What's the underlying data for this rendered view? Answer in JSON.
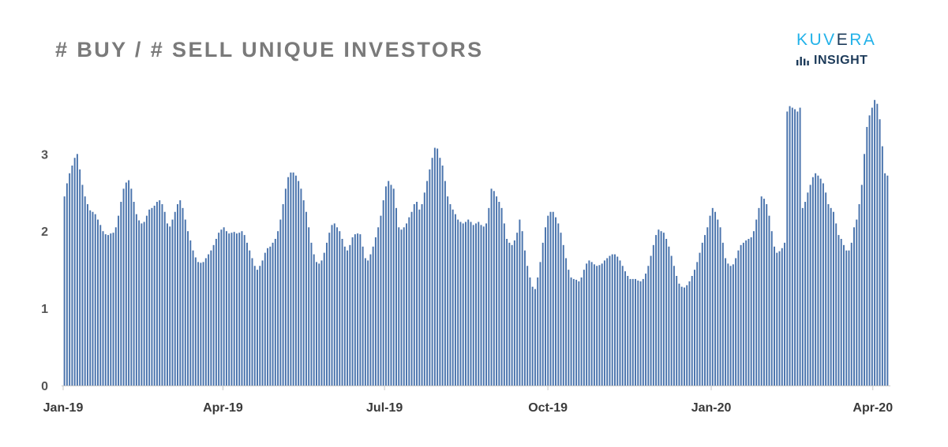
{
  "title": "# BUY / # SELL UNIQUE INVESTORS",
  "logo": {
    "top_a": "KUV",
    "top_e": "E",
    "top_b": "RA",
    "bottom": "INSIGHT",
    "accent": "#23b2e9",
    "dark": "#1d3b5a",
    "icon": "bar-chart-icon"
  },
  "chart_data": {
    "type": "bar",
    "x_start": "2019-01-01",
    "x_end": "2020-04-10",
    "ylim": [
      0,
      3.8
    ],
    "yticks": [
      0,
      1,
      2,
      3
    ],
    "xticks": [
      "Jan-19",
      "Apr-19",
      "Jul-19",
      "Oct-19",
      "Jan-20",
      "Apr-20"
    ],
    "xtick_dates": [
      "2019-01-01",
      "2019-04-01",
      "2019-07-01",
      "2019-10-01",
      "2020-01-01",
      "2020-04-01"
    ],
    "bar_color": "#4a74ad",
    "values": [
      2.45,
      2.62,
      2.75,
      2.85,
      2.95,
      3.0,
      2.8,
      2.6,
      2.45,
      2.35,
      2.27,
      2.25,
      2.22,
      2.15,
      2.08,
      2.0,
      1.96,
      1.95,
      1.97,
      1.98,
      2.05,
      2.2,
      2.38,
      2.55,
      2.63,
      2.66,
      2.55,
      2.38,
      2.22,
      2.14,
      2.1,
      2.12,
      2.2,
      2.28,
      2.3,
      2.33,
      2.38,
      2.4,
      2.35,
      2.25,
      2.1,
      2.06,
      2.15,
      2.25,
      2.35,
      2.4,
      2.3,
      2.15,
      2.0,
      1.88,
      1.75,
      1.66,
      1.6,
      1.59,
      1.6,
      1.65,
      1.7,
      1.75,
      1.82,
      1.9,
      1.98,
      2.02,
      2.05,
      2.0,
      1.97,
      1.98,
      1.99,
      1.97,
      1.98,
      2.0,
      1.95,
      1.85,
      1.75,
      1.65,
      1.55,
      1.5,
      1.55,
      1.62,
      1.72,
      1.78,
      1.8,
      1.85,
      1.9,
      2.0,
      2.15,
      2.35,
      2.55,
      2.7,
      2.76,
      2.76,
      2.72,
      2.65,
      2.55,
      2.4,
      2.25,
      2.05,
      1.85,
      1.7,
      1.6,
      1.58,
      1.62,
      1.72,
      1.85,
      1.98,
      2.08,
      2.1,
      2.05,
      2.0,
      1.9,
      1.8,
      1.75,
      1.82,
      1.92,
      1.96,
      1.97,
      1.96,
      1.8,
      1.65,
      1.62,
      1.7,
      1.8,
      1.92,
      2.05,
      2.2,
      2.4,
      2.58,
      2.65,
      2.6,
      2.55,
      2.3,
      2.05,
      2.02,
      2.05,
      2.1,
      2.18,
      2.25,
      2.35,
      2.38,
      2.28,
      2.35,
      2.5,
      2.65,
      2.8,
      2.95,
      3.08,
      3.07,
      2.95,
      2.85,
      2.65,
      2.45,
      2.35,
      2.28,
      2.22,
      2.15,
      2.12,
      2.1,
      2.12,
      2.15,
      2.12,
      2.08,
      2.1,
      2.12,
      2.08,
      2.06,
      2.1,
      2.3,
      2.55,
      2.52,
      2.45,
      2.38,
      2.3,
      2.1,
      1.9,
      1.85,
      1.82,
      1.88,
      1.98,
      2.15,
      2.0,
      1.75,
      1.55,
      1.4,
      1.28,
      1.25,
      1.4,
      1.6,
      1.85,
      2.05,
      2.2,
      2.25,
      2.25,
      2.18,
      2.1,
      1.98,
      1.82,
      1.65,
      1.5,
      1.4,
      1.38,
      1.37,
      1.35,
      1.4,
      1.5,
      1.58,
      1.62,
      1.6,
      1.57,
      1.55,
      1.56,
      1.58,
      1.62,
      1.65,
      1.68,
      1.7,
      1.7,
      1.67,
      1.62,
      1.55,
      1.48,
      1.42,
      1.38,
      1.38,
      1.38,
      1.36,
      1.35,
      1.38,
      1.45,
      1.55,
      1.68,
      1.82,
      1.95,
      2.02,
      2.0,
      1.98,
      1.9,
      1.8,
      1.68,
      1.55,
      1.42,
      1.32,
      1.28,
      1.27,
      1.3,
      1.35,
      1.42,
      1.5,
      1.6,
      1.72,
      1.85,
      1.95,
      2.05,
      2.2,
      2.3,
      2.25,
      2.15,
      2.05,
      1.85,
      1.65,
      1.58,
      1.55,
      1.57,
      1.65,
      1.75,
      1.82,
      1.85,
      1.88,
      1.9,
      1.92,
      2.0,
      2.15,
      2.3,
      2.45,
      2.42,
      2.35,
      2.2,
      2.0,
      1.8,
      1.72,
      1.74,
      1.78,
      1.85,
      3.55,
      3.62,
      3.6,
      3.58,
      3.55,
      3.6,
      2.3,
      2.38,
      2.5,
      2.6,
      2.7,
      2.75,
      2.72,
      2.68,
      2.62,
      2.5,
      2.35,
      2.3,
      2.25,
      2.1,
      1.95,
      1.9,
      1.82,
      1.75,
      1.75,
      1.85,
      2.05,
      2.15,
      2.35,
      2.6,
      3.0,
      3.35,
      3.5,
      3.6,
      3.7,
      3.65,
      3.45,
      3.1,
      2.75,
      2.72
    ]
  }
}
